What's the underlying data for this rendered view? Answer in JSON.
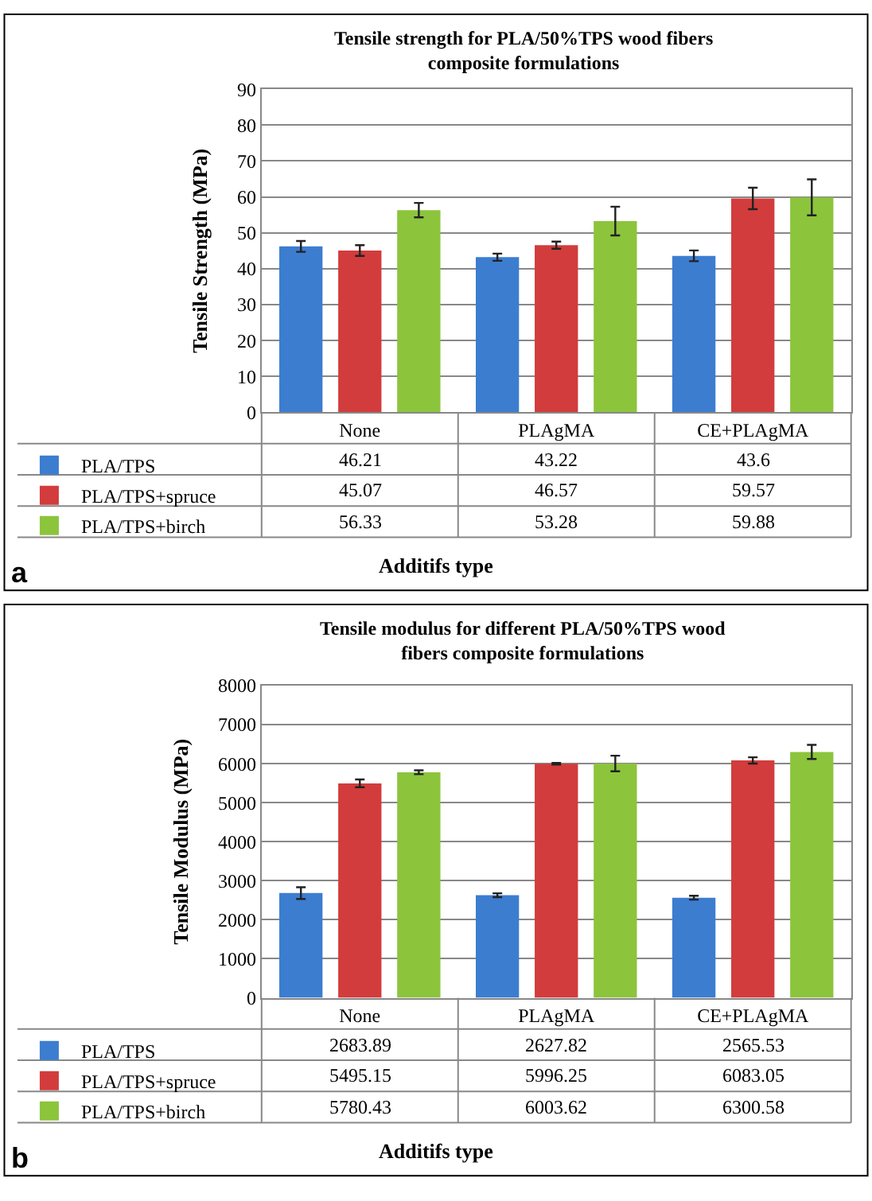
{
  "chart_data": [
    {
      "type": "bar",
      "title": "Tensile strength for PLA/50%TPS wood fibers composite formulations",
      "xlabel": "Additifs type",
      "ylabel": "Tensile Strength (MPa)",
      "categories": [
        "None",
        "PLAgMA",
        "CE+PLAgMA"
      ],
      "ylim": [
        0,
        90
      ],
      "yticks": [
        0,
        10,
        20,
        30,
        40,
        50,
        60,
        70,
        80,
        90
      ],
      "grid": "y",
      "legend": "bottom left",
      "data_labels": true,
      "annotations": [
        "a"
      ],
      "series": [
        {
          "name": "PLA/TPS",
          "color": "#3c7dd0",
          "values": [
            46.21,
            43.22,
            43.6
          ],
          "errors": [
            1.5,
            1,
            1.5
          ]
        },
        {
          "name": "PLA/TPS+spruce",
          "color": "#d23c3c",
          "values": [
            45.07,
            46.57,
            59.57
          ],
          "errors": [
            1.5,
            1,
            3
          ]
        },
        {
          "name": "PLA/TPS+birch",
          "color": "#8cc43c",
          "values": [
            56.33,
            53.28,
            59.88
          ],
          "errors": [
            2,
            4,
            5
          ]
        }
      ]
    },
    {
      "type": "bar",
      "title": "Tensile modulus for different PLA/50%TPS wood fibers composite formulations",
      "xlabel": "Additifs type",
      "ylabel": "Tensile Modulus (MPa)",
      "categories": [
        "None",
        "PLAgMA",
        "CE+PLAgMA"
      ],
      "ylim": [
        0,
        8000
      ],
      "yticks": [
        0,
        1000,
        2000,
        3000,
        4000,
        5000,
        6000,
        7000,
        8000
      ],
      "grid": "y",
      "legend": "bottom left",
      "data_labels": true,
      "annotations": [
        "b"
      ],
      "series": [
        {
          "name": "PLA/TPS",
          "color": "#3c7dd0",
          "values": [
            2683.89,
            2627.82,
            2565.53
          ],
          "errors": [
            150,
            50,
            50
          ]
        },
        {
          "name": "PLA/TPS+spruce",
          "color": "#d23c3c",
          "values": [
            5495.15,
            5996.25,
            6083.05
          ],
          "errors": [
            100,
            20,
            80
          ]
        },
        {
          "name": "PLA/TPS+birch",
          "color": "#8cc43c",
          "values": [
            5780.43,
            6003.62,
            6300.58
          ],
          "errors": [
            50,
            200,
            180
          ]
        }
      ]
    }
  ]
}
